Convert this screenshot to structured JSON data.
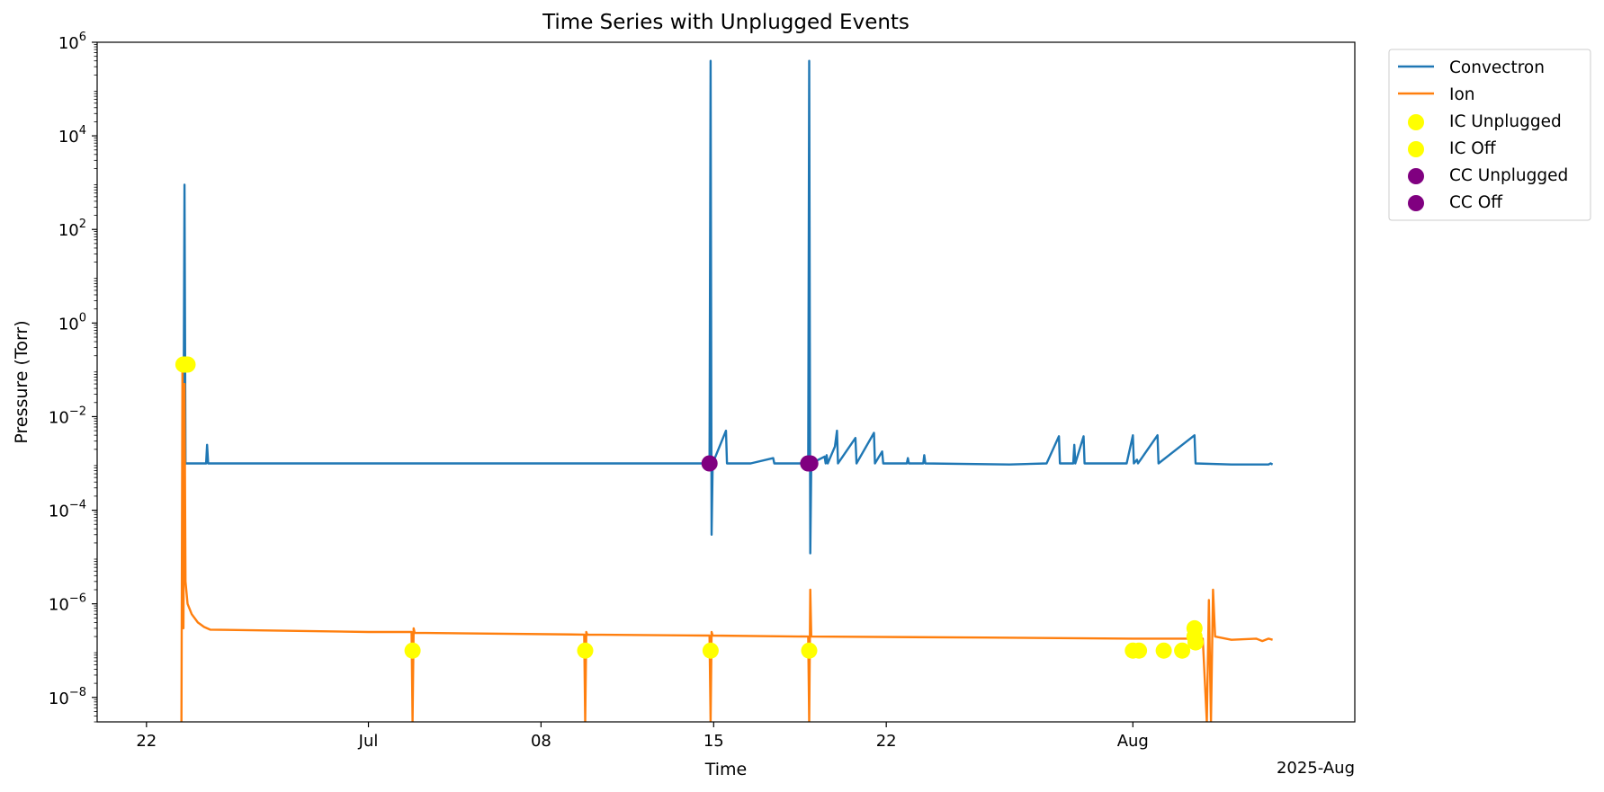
{
  "chart_data": {
    "type": "line",
    "title": "Time Series with Unplugged Events",
    "xlabel": "Time",
    "ylabel": "Pressure (Torr)",
    "x_offset_label": "2025-Aug",
    "y_scale": "log",
    "ylim": [
      3e-09,
      1000000.0
    ],
    "xlim": [
      "2025-06-20",
      "2025-08-10"
    ],
    "grid": false,
    "legend_position": "outside-right-top",
    "x_ticks": [
      {
        "date": "2025-06-22",
        "label": "22"
      },
      {
        "date": "2025-07-01",
        "label": "Jul"
      },
      {
        "date": "2025-07-08",
        "label": "08"
      },
      {
        "date": "2025-07-15",
        "label": "15"
      },
      {
        "date": "2025-07-22",
        "label": "22"
      },
      {
        "date": "2025-08-01",
        "label": "Aug"
      }
    ],
    "y_ticks": [
      {
        "value": 1e-08,
        "base": "10",
        "exp": "−8"
      },
      {
        "value": 1e-06,
        "base": "10",
        "exp": "−6"
      },
      {
        "value": 0.0001,
        "base": "10",
        "exp": "−4"
      },
      {
        "value": 0.01,
        "base": "10",
        "exp": "−2"
      },
      {
        "value": 1,
        "base": "10",
        "exp": "0"
      },
      {
        "value": 100,
        "base": "10",
        "exp": "2"
      },
      {
        "value": 10000,
        "base": "10",
        "exp": "4"
      },
      {
        "value": 1000000,
        "base": "10",
        "exp": "6"
      }
    ],
    "series": [
      {
        "name": "Convectron",
        "kind": "line",
        "color": "#1f77b4",
        "points": [
          [
            "2025-06-23 12:00",
            0.001
          ],
          [
            "2025-06-23 13:00",
            900
          ],
          [
            "2025-06-23 14:00",
            0.001
          ],
          [
            "2025-06-24 00:00",
            0.001
          ],
          [
            "2025-06-24 10:00",
            0.001
          ],
          [
            "2025-06-24 11:00",
            0.0025
          ],
          [
            "2025-06-24 12:00",
            0.001
          ],
          [
            "2025-07-02 00:00",
            0.001
          ],
          [
            "2025-07-06 00:00",
            0.001
          ],
          [
            "2025-07-10 00:00",
            0.001
          ],
          [
            "2025-07-14 20:00",
            0.001
          ],
          [
            "2025-07-14 21:00",
            400000
          ],
          [
            "2025-07-14 22:00",
            3e-05
          ],
          [
            "2025-07-14 23:00",
            0.001
          ],
          [
            "2025-07-15 12:00",
            0.005
          ],
          [
            "2025-07-15 13:00",
            0.001
          ],
          [
            "2025-07-16 12:00",
            0.001
          ],
          [
            "2025-07-17 10:00",
            0.0013
          ],
          [
            "2025-07-17 11:00",
            0.001
          ],
          [
            "2025-07-18 20:00",
            0.001
          ],
          [
            "2025-07-18 21:00",
            400000
          ],
          [
            "2025-07-18 22:00",
            1.2e-05
          ],
          [
            "2025-07-18 23:00",
            0.001
          ],
          [
            "2025-07-19 12:00",
            0.0014
          ],
          [
            "2025-07-19 13:00",
            0.001
          ],
          [
            "2025-07-19 14:00",
            0.0015
          ],
          [
            "2025-07-19 15:00",
            0.001
          ],
          [
            "2025-07-19 22:00",
            0.0023
          ],
          [
            "2025-07-20 00:00",
            0.005
          ],
          [
            "2025-07-20 01:00",
            0.001
          ],
          [
            "2025-07-20 18:00",
            0.0035
          ],
          [
            "2025-07-20 19:00",
            0.001
          ],
          [
            "2025-07-21 12:00",
            0.0045
          ],
          [
            "2025-07-21 13:00",
            0.001
          ],
          [
            "2025-07-21 20:00",
            0.0018
          ],
          [
            "2025-07-21 21:00",
            0.001
          ],
          [
            "2025-07-22 20:00",
            0.001
          ],
          [
            "2025-07-22 21:00",
            0.0013
          ],
          [
            "2025-07-22 22:00",
            0.001
          ],
          [
            "2025-07-23 12:00",
            0.001
          ],
          [
            "2025-07-23 13:00",
            0.0015
          ],
          [
            "2025-07-23 14:00",
            0.001
          ],
          [
            "2025-07-27 00:00",
            0.00095
          ],
          [
            "2025-07-28 12:00",
            0.001
          ],
          [
            "2025-07-29 00:00",
            0.0038
          ],
          [
            "2025-07-29 01:00",
            0.001
          ],
          [
            "2025-07-29 14:00",
            0.001
          ],
          [
            "2025-07-29 15:00",
            0.0025
          ],
          [
            "2025-07-29 16:00",
            0.001
          ],
          [
            "2025-07-30 00:00",
            0.0038
          ],
          [
            "2025-07-30 01:00",
            0.001
          ],
          [
            "2025-07-31 18:00",
            0.001
          ],
          [
            "2025-08-01 00:00",
            0.004
          ],
          [
            "2025-08-01 01:00",
            0.001
          ],
          [
            "2025-08-01 04:00",
            0.0012
          ],
          [
            "2025-08-01 05:00",
            0.001
          ],
          [
            "2025-08-02 00:00",
            0.004
          ],
          [
            "2025-08-02 01:00",
            0.001
          ],
          [
            "2025-08-03 12:00",
            0.004
          ],
          [
            "2025-08-03 13:00",
            0.001
          ],
          [
            "2025-08-05 00:00",
            0.00095
          ],
          [
            "2025-08-06 12:00",
            0.00095
          ],
          [
            "2025-08-06 14:00",
            0.001
          ],
          [
            "2025-08-06 16:00",
            0.00095
          ]
        ]
      },
      {
        "name": "Ion",
        "kind": "line",
        "color": "#ff7f0e",
        "points": [
          [
            "2025-06-23 10:00",
            3e-09
          ],
          [
            "2025-06-23 11:00",
            0.1
          ],
          [
            "2025-06-23 12:00",
            3e-07
          ],
          [
            "2025-06-23 13:00",
            0.05
          ],
          [
            "2025-06-23 14:00",
            3e-06
          ],
          [
            "2025-06-23 16:00",
            1e-06
          ],
          [
            "2025-06-23 20:00",
            6e-07
          ],
          [
            "2025-06-24 02:00",
            4e-07
          ],
          [
            "2025-06-24 08:00",
            3.2e-07
          ],
          [
            "2025-06-24 14:00",
            2.8e-07
          ],
          [
            "2025-07-01 00:00",
            2.5e-07
          ],
          [
            "2025-07-02 18:00",
            2.5e-07
          ],
          [
            "2025-07-02 19:00",
            3e-09
          ],
          [
            "2025-07-02 20:00",
            3e-07
          ],
          [
            "2025-07-02 21:00",
            2.4e-07
          ],
          [
            "2025-07-09 18:00",
            2.2e-07
          ],
          [
            "2025-07-09 19:00",
            3e-09
          ],
          [
            "2025-07-09 20:00",
            2.5e-07
          ],
          [
            "2025-07-09 21:00",
            2.2e-07
          ],
          [
            "2025-07-14 20:00",
            2.1e-07
          ],
          [
            "2025-07-14 21:00",
            3e-09
          ],
          [
            "2025-07-14 22:00",
            2.5e-07
          ],
          [
            "2025-07-14 23:00",
            2.1e-07
          ],
          [
            "2025-07-18 20:00",
            2e-07
          ],
          [
            "2025-07-18 21:00",
            3e-09
          ],
          [
            "2025-07-18 22:00",
            2e-06
          ],
          [
            "2025-07-18 23:00",
            2e-07
          ],
          [
            "2025-07-26 00:00",
            1.9e-07
          ],
          [
            "2025-08-01 00:00",
            1.8e-07
          ],
          [
            "2025-08-03 20:00",
            1.8e-07
          ],
          [
            "2025-08-04 00:00",
            3e-09
          ],
          [
            "2025-08-04 02:00",
            1.2e-06
          ],
          [
            "2025-08-04 04:00",
            3e-09
          ],
          [
            "2025-08-04 06:00",
            2e-06
          ],
          [
            "2025-08-04 08:00",
            2e-07
          ],
          [
            "2025-08-05 00:00",
            1.7e-07
          ],
          [
            "2025-08-06 00:00",
            1.8e-07
          ],
          [
            "2025-08-06 06:00",
            1.6e-07
          ],
          [
            "2025-08-06 12:00",
            1.8e-07
          ],
          [
            "2025-08-06 16:00",
            1.7e-07
          ]
        ]
      },
      {
        "name": "IC Unplugged",
        "kind": "scatter",
        "color": "#ffff00",
        "points": [
          [
            "2025-06-23 12:00",
            0.13
          ],
          [
            "2025-06-23 16:00",
            0.13
          ],
          [
            "2025-07-02 19:00",
            1e-07
          ],
          [
            "2025-07-09 19:00",
            1e-07
          ],
          [
            "2025-07-14 21:00",
            1e-07
          ],
          [
            "2025-07-18 21:00",
            1e-07
          ],
          [
            "2025-08-01 06:00",
            1e-07
          ],
          [
            "2025-08-02 06:00",
            1e-07
          ],
          [
            "2025-08-03 00:00",
            1e-07
          ],
          [
            "2025-08-03 12:00",
            3e-07
          ],
          [
            "2025-08-03 12:00",
            2e-07
          ]
        ]
      },
      {
        "name": "IC Off",
        "kind": "scatter",
        "color": "#ffff00",
        "points": [
          [
            "2025-06-23 14:00",
            0.13
          ],
          [
            "2025-08-01 00:00",
            1e-07
          ],
          [
            "2025-08-03 13:00",
            1.5e-07
          ]
        ]
      },
      {
        "name": "CC Unplugged",
        "kind": "scatter",
        "color": "#800080",
        "points": [
          [
            "2025-07-14 20:00",
            0.001
          ],
          [
            "2025-07-18 20:00",
            0.001
          ]
        ]
      },
      {
        "name": "CC Off",
        "kind": "scatter",
        "color": "#800080",
        "points": [
          [
            "2025-07-18 22:00",
            0.001
          ]
        ]
      }
    ]
  }
}
